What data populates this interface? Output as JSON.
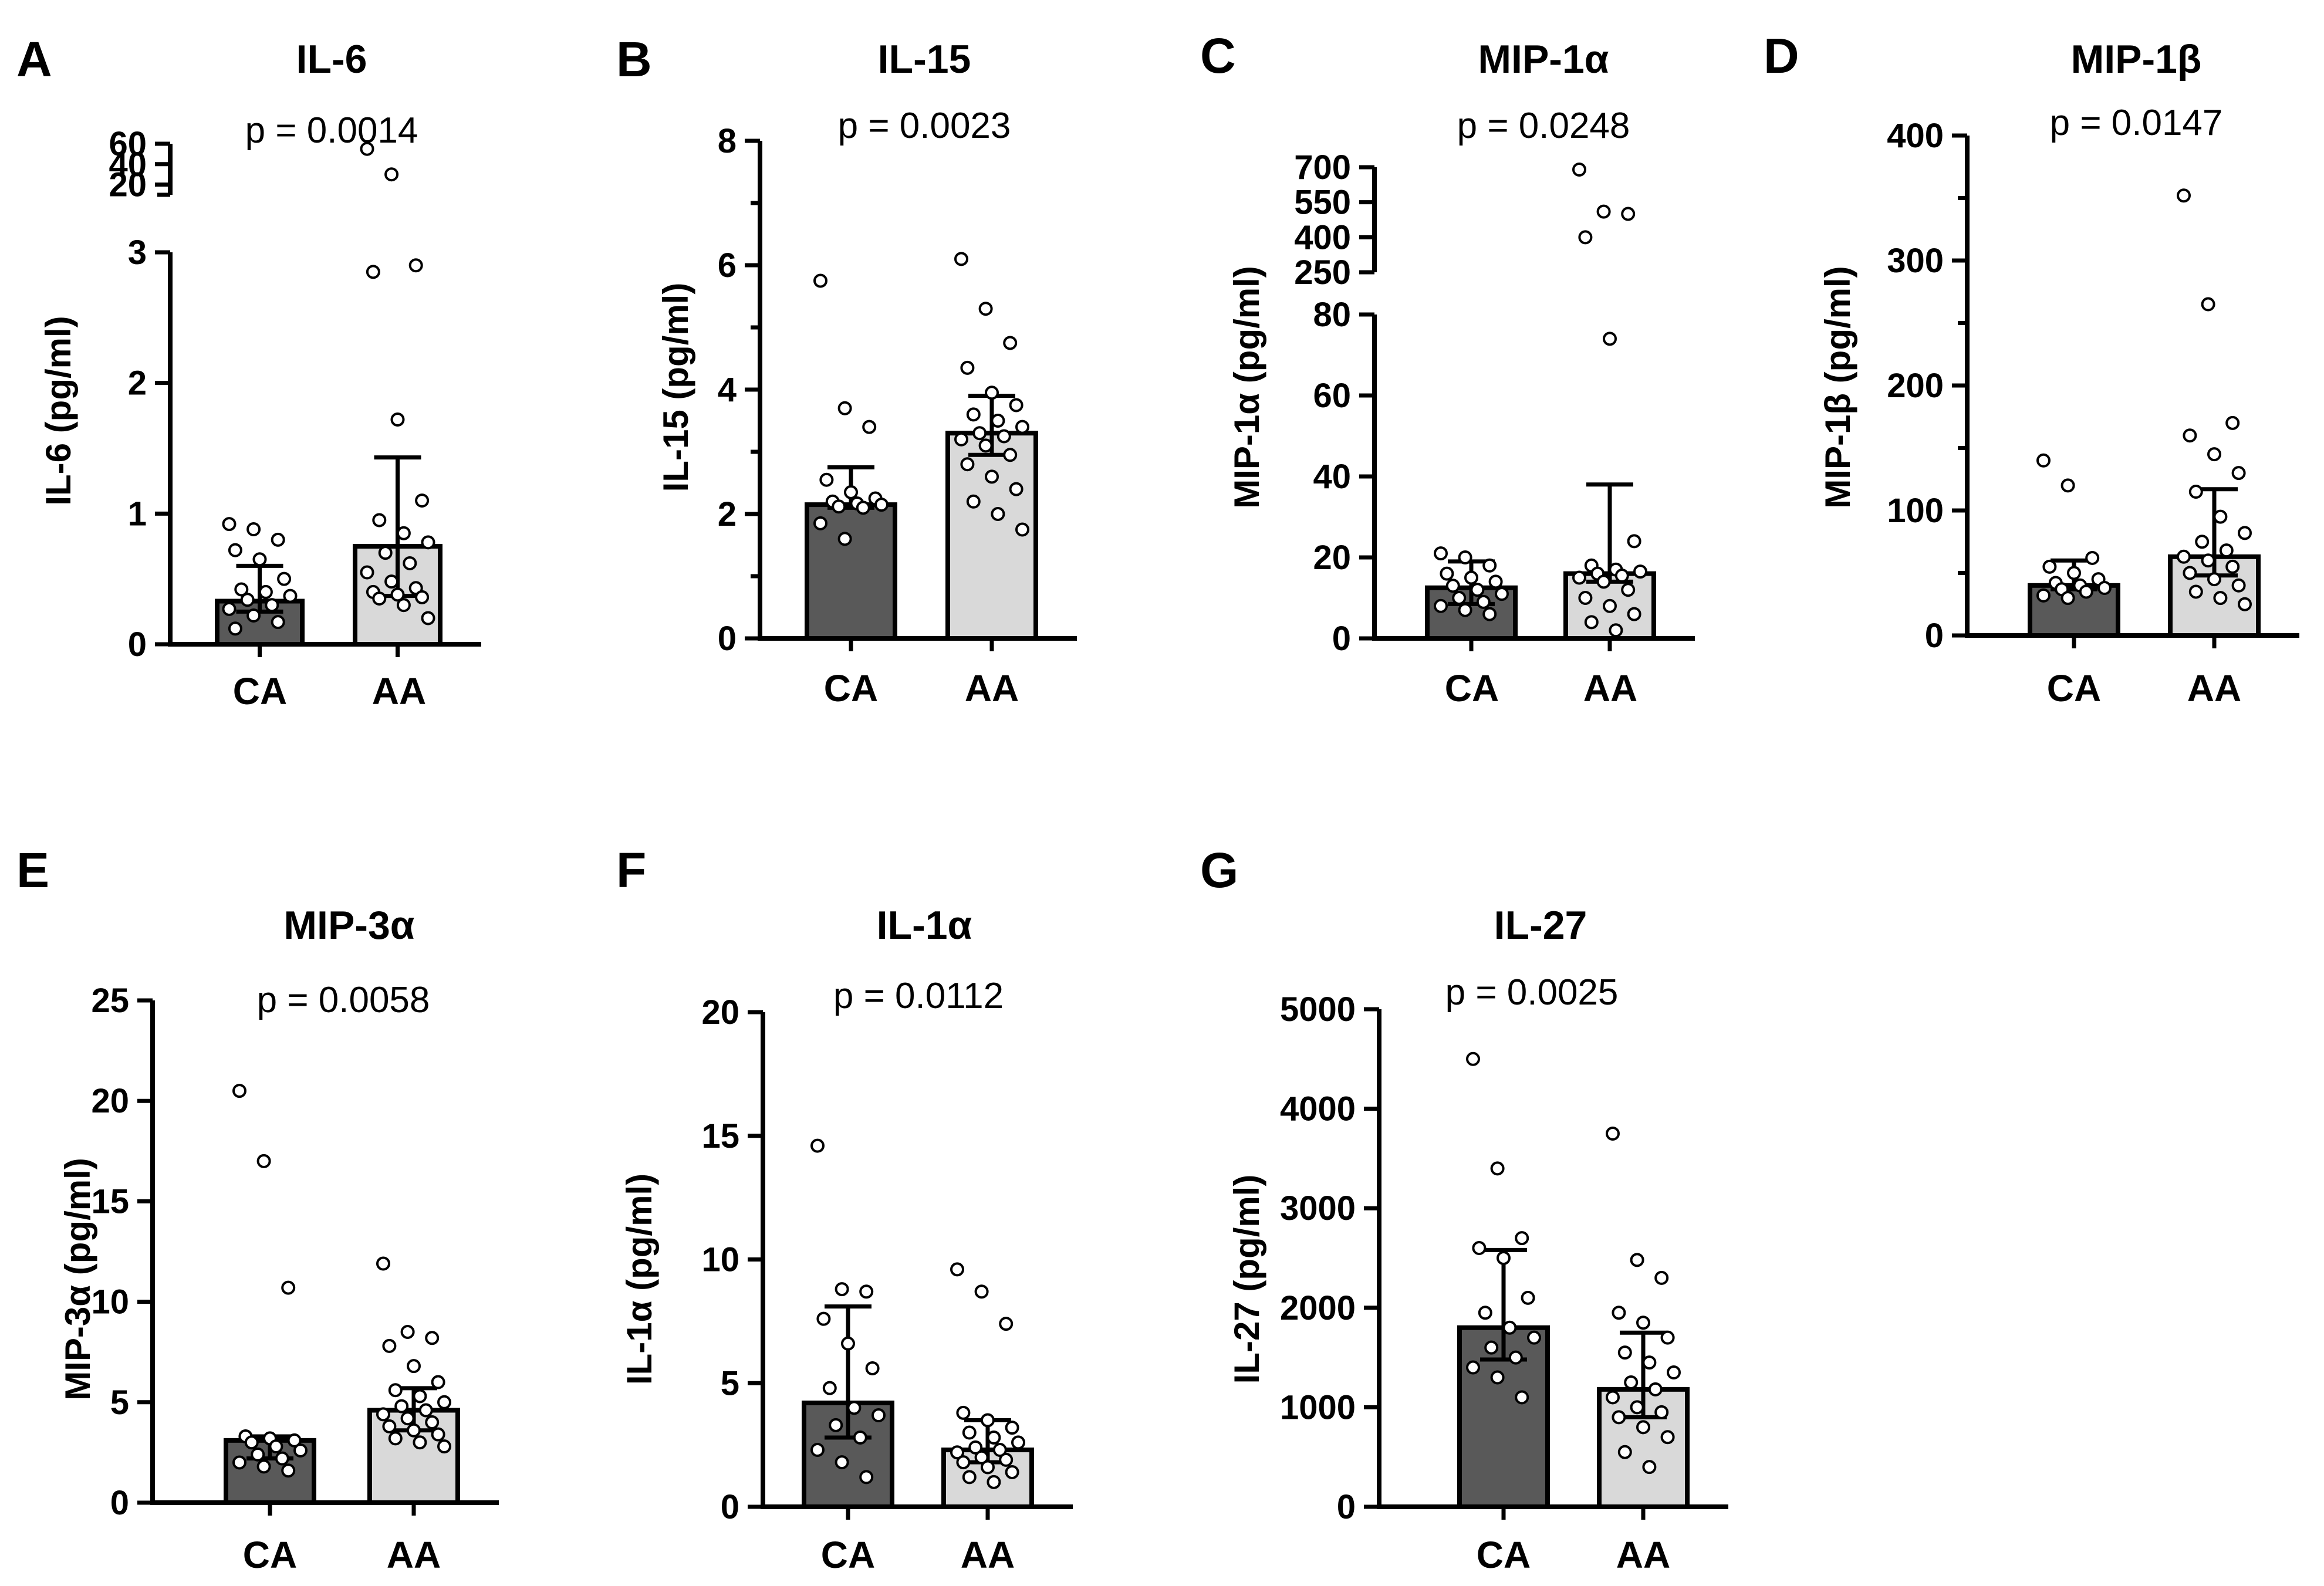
{
  "figure": {
    "groups": [
      "CA",
      "AA"
    ],
    "colors": {
      "CA": "#595959",
      "AA": "#d9d9d9",
      "axis": "#000000",
      "point_fill": "#ffffff"
    }
  },
  "chart_data": [
    {
      "panel": "A",
      "type": "bar",
      "title": "IL-6",
      "ylabel": "IL-6 (pg/ml)",
      "pvalue": "p = 0.0014",
      "categories": [
        "CA",
        "AA"
      ],
      "y_axis": {
        "broken": true,
        "lower": {
          "range": [
            0,
            3
          ],
          "ticks": [
            0,
            1,
            2,
            3
          ],
          "tick_labels": [
            "0",
            "1",
            "2",
            "3"
          ]
        },
        "upper": {
          "range": [
            10,
            60
          ],
          "ticks": [
            20,
            40,
            60
          ],
          "tick_labels": [
            "20",
            "40",
            "60"
          ]
        }
      },
      "bars": [
        {
          "group": "CA",
          "median": 0.33,
          "iqr": [
            0.25,
            0.6
          ],
          "points": [
            0.92,
            0.88,
            0.8,
            0.72,
            0.65,
            0.5,
            0.42,
            0.4,
            0.37,
            0.34,
            0.3,
            0.27,
            0.22,
            0.17,
            0.12
          ]
        },
        {
          "group": "AA",
          "median": 0.75,
          "iqr": [
            0.37,
            1.43
          ],
          "points": [
            55,
            30,
            2.9,
            2.85,
            1.72,
            1.1,
            0.95,
            0.85,
            0.78,
            0.7,
            0.62,
            0.55,
            0.48,
            0.43,
            0.4,
            0.38,
            0.36,
            0.35,
            0.3,
            0.2
          ]
        }
      ]
    },
    {
      "panel": "B",
      "type": "bar",
      "title": "IL-15",
      "ylabel": "IL-15 (pg/ml)",
      "pvalue": "p = 0.0023",
      "categories": [
        "CA",
        "AA"
      ],
      "y_axis": {
        "range": [
          0,
          8
        ],
        "ticks": [
          0,
          1,
          2,
          3,
          4,
          5,
          6,
          7,
          8
        ],
        "tick_labels": [
          "0",
          "",
          "2",
          "",
          "4",
          "",
          "6",
          "",
          "8"
        ]
      },
      "bars": [
        {
          "group": "CA",
          "median": 2.15,
          "iqr": [
            2.1,
            2.75
          ],
          "points": [
            5.75,
            3.7,
            3.4,
            2.55,
            2.35,
            2.25,
            2.2,
            2.17,
            2.15,
            2.12,
            2.1,
            1.85,
            1.6
          ]
        },
        {
          "group": "AA",
          "median": 3.3,
          "iqr": [
            2.95,
            3.9
          ],
          "points": [
            6.1,
            5.3,
            4.75,
            4.35,
            3.95,
            3.75,
            3.6,
            3.5,
            3.4,
            3.3,
            3.25,
            3.2,
            3.1,
            2.95,
            2.8,
            2.6,
            2.4,
            2.2,
            2.0,
            1.75
          ]
        }
      ]
    },
    {
      "panel": "C",
      "type": "bar",
      "title": "MIP-1α",
      "ylabel": "MIP-1α (pg/ml)",
      "pvalue": "p = 0.0248",
      "categories": [
        "CA",
        "AA"
      ],
      "y_axis": {
        "broken": true,
        "lower": {
          "range": [
            0,
            80
          ],
          "ticks": [
            0,
            20,
            40,
            60,
            80
          ],
          "tick_labels": [
            "0",
            "20",
            "40",
            "60",
            "80"
          ]
        },
        "upper": {
          "range": [
            250,
            700
          ],
          "ticks": [
            250,
            400,
            550,
            700
          ],
          "tick_labels": [
            "250",
            "400",
            "550",
            "700"
          ]
        }
      },
      "bars": [
        {
          "group": "CA",
          "median": 12.5,
          "iqr": [
            8.5,
            19
          ],
          "points": [
            21,
            20,
            18,
            16,
            15,
            14,
            13,
            12,
            11,
            10,
            9,
            8,
            7,
            6
          ]
        },
        {
          "group": "AA",
          "median": 16,
          "iqr": [
            14,
            38
          ],
          "points": [
            690,
            510,
            500,
            400,
            74,
            24,
            18,
            17,
            16.5,
            16,
            15.5,
            15,
            14,
            12,
            10,
            8,
            6,
            4,
            2
          ]
        }
      ]
    },
    {
      "panel": "D",
      "type": "bar",
      "title": "MIP-1β",
      "ylabel": "MIP-1β (pg/ml)",
      "pvalue": "p = 0.0147",
      "categories": [
        "CA",
        "AA"
      ],
      "y_axis": {
        "range": [
          0,
          400
        ],
        "ticks": [
          0,
          50,
          100,
          150,
          200,
          250,
          300,
          350,
          400
        ],
        "tick_labels": [
          "0",
          "",
          "100",
          "",
          "200",
          "",
          "300",
          "",
          "400"
        ]
      },
      "bars": [
        {
          "group": "CA",
          "median": 40,
          "iqr": [
            37,
            60
          ],
          "points": [
            140,
            120,
            62,
            55,
            50,
            45,
            42,
            40,
            38,
            37,
            35,
            32,
            30
          ]
        },
        {
          "group": "AA",
          "median": 63,
          "iqr": [
            48,
            117
          ],
          "points": [
            352,
            265,
            170,
            160,
            145,
            130,
            115,
            95,
            82,
            75,
            68,
            63,
            60,
            55,
            50,
            45,
            40,
            35,
            30,
            25
          ]
        }
      ]
    },
    {
      "panel": "E",
      "type": "bar",
      "title": "MIP-3α",
      "ylabel": "MIP-3α (pg/ml)",
      "pvalue": "p = 0.0058",
      "categories": [
        "CA",
        "AA"
      ],
      "y_axis": {
        "range": [
          0,
          25
        ],
        "ticks": [
          0,
          5,
          10,
          15,
          20,
          25
        ],
        "tick_labels": [
          "0",
          "5",
          "10",
          "15",
          "20",
          "25"
        ]
      },
      "bars": [
        {
          "group": "CA",
          "median": 3.1,
          "iqr": [
            2.2,
            3.3
          ],
          "points": [
            20.5,
            17,
            10.7,
            3.3,
            3.2,
            3.1,
            3.0,
            2.8,
            2.6,
            2.4,
            2.2,
            2.0,
            1.8,
            1.6
          ]
        },
        {
          "group": "AA",
          "median": 4.6,
          "iqr": [
            3.6,
            5.7
          ],
          "points": [
            11.9,
            8.5,
            8.2,
            7.8,
            6.8,
            6.0,
            5.6,
            5.3,
            5.0,
            4.8,
            4.6,
            4.4,
            4.2,
            4.0,
            3.8,
            3.6,
            3.4,
            3.2,
            3.0,
            2.8
          ]
        }
      ]
    },
    {
      "panel": "F",
      "type": "bar",
      "title": "IL-1α",
      "ylabel": "IL-1α (pg/ml)",
      "pvalue": "p = 0.0112",
      "categories": [
        "CA",
        "AA"
      ],
      "y_axis": {
        "range": [
          0,
          20
        ],
        "ticks": [
          0,
          5,
          10,
          15,
          20
        ],
        "tick_labels": [
          "0",
          "5",
          "10",
          "15",
          "20"
        ]
      },
      "bars": [
        {
          "group": "CA",
          "median": 4.2,
          "iqr": [
            2.8,
            8.1
          ],
          "points": [
            14.6,
            8.8,
            8.7,
            7.6,
            6.6,
            5.6,
            4.8,
            4.0,
            3.7,
            3.3,
            2.8,
            2.3,
            1.8,
            1.2
          ]
        },
        {
          "group": "AA",
          "median": 2.3,
          "iqr": [
            1.8,
            3.5
          ],
          "points": [
            9.6,
            8.7,
            7.4,
            3.8,
            3.5,
            3.2,
            3.0,
            2.8,
            2.6,
            2.4,
            2.3,
            2.2,
            2.0,
            1.9,
            1.8,
            1.6,
            1.4,
            1.2,
            1.0
          ]
        }
      ]
    },
    {
      "panel": "G",
      "type": "bar",
      "title": "IL-27",
      "ylabel": "IL-27 (pg/ml)",
      "pvalue": "p = 0.0025",
      "categories": [
        "CA",
        "AA"
      ],
      "y_axis": {
        "range": [
          0,
          5000
        ],
        "ticks": [
          0,
          1000,
          2000,
          3000,
          4000,
          5000
        ],
        "tick_labels": [
          "0",
          "1000",
          "2000",
          "3000",
          "4000",
          "5000"
        ]
      },
      "bars": [
        {
          "group": "CA",
          "median": 1800,
          "iqr": [
            1480,
            2580
          ],
          "points": [
            4500,
            3400,
            2700,
            2600,
            2500,
            2100,
            1950,
            1800,
            1700,
            1600,
            1500,
            1400,
            1300,
            1100
          ]
        },
        {
          "group": "AA",
          "median": 1180,
          "iqr": [
            900,
            1750
          ],
          "points": [
            3750,
            2480,
            2300,
            1950,
            1850,
            1700,
            1550,
            1450,
            1350,
            1250,
            1180,
            1100,
            1000,
            950,
            900,
            800,
            700,
            550,
            400
          ]
        }
      ]
    }
  ]
}
